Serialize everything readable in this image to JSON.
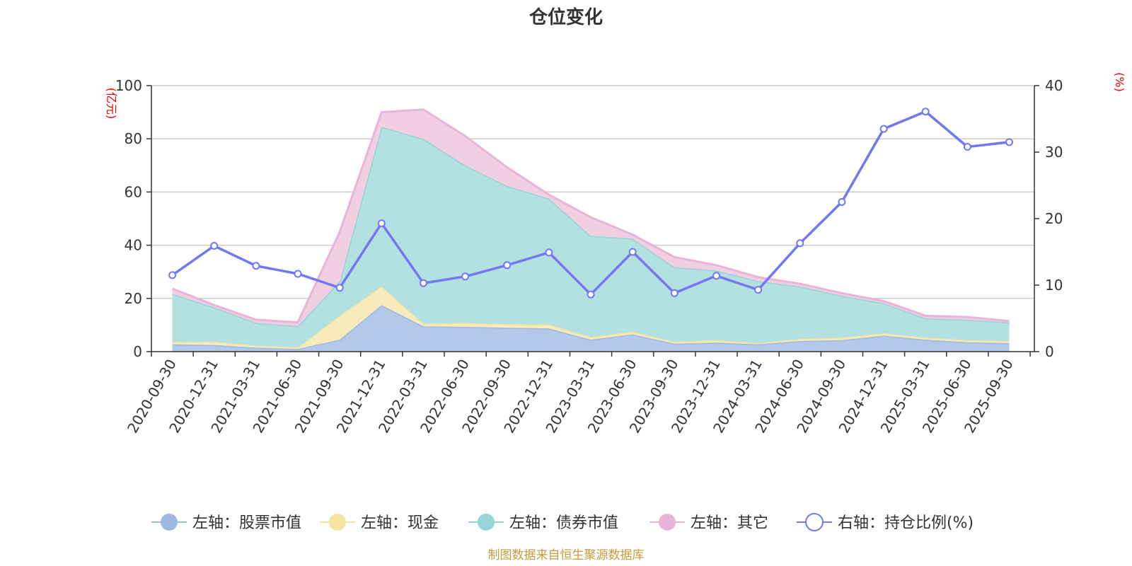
{
  "chart_data": {
    "type": "area",
    "title": "仓位变化",
    "left_axis_unit": "(亿元)",
    "right_axis_unit": "(%)",
    "left_ylim": [
      0,
      100
    ],
    "left_yticks": [
      0,
      20,
      40,
      60,
      80,
      100
    ],
    "right_ylim": [
      0,
      40
    ],
    "right_yticks": [
      0,
      10,
      20,
      30,
      40
    ],
    "grid": true,
    "legend_position": "bottom",
    "categories": [
      "2020-09-30",
      "2020-12-31",
      "2021-03-31",
      "2021-06-30",
      "2021-09-30",
      "2021-12-31",
      "2022-03-31",
      "2022-06-30",
      "2022-09-30",
      "2022-12-31",
      "2023-03-31",
      "2023-06-30",
      "2023-09-30",
      "2023-12-31",
      "2024-03-31",
      "2024-06-30",
      "2024-09-30",
      "2024-12-31",
      "2025-03-31",
      "2025-06-30",
      "2025-09-30"
    ],
    "series": [
      {
        "name": "左轴：股票市值",
        "axis": "left",
        "kind": "stacked-area",
        "color": "#9db8e3",
        "fill": "#b4c8ea",
        "values": [
          2.7,
          2.5,
          1.5,
          1.0,
          4.5,
          17.5,
          9.5,
          9.3,
          9.0,
          8.7,
          4.5,
          6.5,
          3.0,
          3.4,
          2.7,
          4.0,
          4.3,
          6.0,
          4.5,
          3.5,
          3.2
        ]
      },
      {
        "name": "左轴：现金",
        "axis": "left",
        "kind": "stacked-area",
        "color": "#f5e3a0",
        "fill": "#f8ebbb",
        "values": [
          1.0,
          1.2,
          0.8,
          0.6,
          9.0,
          7.0,
          1.0,
          1.5,
          1.3,
          1.5,
          1.0,
          1.0,
          0.7,
          0.9,
          0.5,
          0.8,
          1.0,
          0.9,
          0.8,
          0.8,
          0.8
        ]
      },
      {
        "name": "左轴：债券市值",
        "axis": "left",
        "kind": "stacked-area",
        "color": "#96d4d6",
        "fill": "#b3e0e0",
        "values": [
          18.0,
          13.0,
          8.5,
          8.0,
          13.0,
          60.0,
          69.5,
          59.2,
          52.0,
          47.3,
          38.0,
          35.0,
          28.0,
          26.2,
          23.3,
          19.7,
          15.7,
          11.3,
          7.2,
          7.7,
          7.0
        ]
      },
      {
        "name": "左轴：其它",
        "axis": "left",
        "kind": "stacked-area",
        "color": "#e8b4d8",
        "fill": "#f0cfe3",
        "values": [
          2.0,
          0.8,
          1.2,
          1.4,
          18.5,
          5.5,
          11.0,
          11.0,
          7.0,
          1.5,
          7.0,
          1.5,
          3.8,
          2.0,
          1.5,
          1.0,
          1.0,
          0.8,
          1.0,
          1.0,
          0.5
        ]
      },
      {
        "name": "右轴：持仓比例(%)",
        "axis": "right",
        "kind": "line",
        "color": "#7378f0",
        "values": [
          11.5,
          15.9,
          12.9,
          11.7,
          9.6,
          19.3,
          10.3,
          11.3,
          13.0,
          14.9,
          8.6,
          15.0,
          8.8,
          11.4,
          9.3,
          16.3,
          22.5,
          33.5,
          36.1,
          30.8,
          31.5
        ]
      }
    ],
    "source": "制图数据来自恒生聚源数据库"
  }
}
